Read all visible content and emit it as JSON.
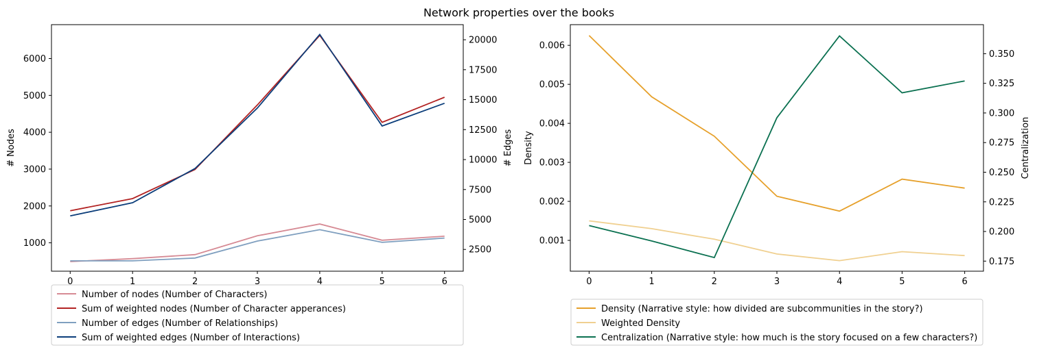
{
  "suptitle": "Network properties over the books",
  "chart_data": [
    {
      "type": "line",
      "x": [
        0,
        1,
        2,
        3,
        4,
        5,
        6
      ],
      "xlim": [
        -0.3,
        6.3
      ],
      "left_axis": {
        "label": "# Nodes",
        "ylim": [
          230,
          6920
        ],
        "ticks": [
          1000,
          2000,
          3000,
          4000,
          5000,
          6000
        ]
      },
      "right_axis": {
        "label": "# Edges",
        "ylim": [
          685,
          21260
        ],
        "ticks": [
          2500,
          5000,
          7500,
          10000,
          12500,
          15000,
          17500,
          20000
        ]
      },
      "series": [
        {
          "name": "Number of nodes (Number of Characters)",
          "axis": "left",
          "color": "#d68a94",
          "values": [
            490,
            570,
            680,
            1190,
            1510,
            1070,
            1180
          ]
        },
        {
          "name": "Sum of weighted nodes (Number of Character apperances)",
          "axis": "left",
          "color": "#b22222",
          "values": [
            1870,
            2200,
            2990,
            4740,
            6630,
            4270,
            4950
          ]
        },
        {
          "name": "Number of edges (Number of Relationships)",
          "axis": "right",
          "color": "#7f9fbf",
          "values": [
            1550,
            1550,
            1780,
            3200,
            4150,
            3090,
            3450
          ]
        },
        {
          "name": "Sum of weighted edges (Number of Interactions)",
          "axis": "right",
          "color": "#0b3d7a",
          "values": [
            5300,
            6400,
            9250,
            14300,
            20440,
            12800,
            14700
          ]
        }
      ],
      "legend": "below"
    },
    {
      "type": "line",
      "x": [
        0,
        1,
        2,
        3,
        4,
        5,
        6
      ],
      "xlim": [
        -0.3,
        6.3
      ],
      "left_axis": {
        "label": "Density",
        "ylim": [
          0.00021,
          0.00653
        ],
        "ticks": [
          0.001,
          0.002,
          0.003,
          0.004,
          0.005,
          0.006
        ],
        "tick_labels": [
          "0.001",
          "0.002",
          "0.003",
          "0.004",
          "0.005",
          "0.006"
        ]
      },
      "right_axis": {
        "label": "Centralization",
        "ylim": [
          0.1665,
          0.3745
        ],
        "ticks": [
          0.175,
          0.2,
          0.225,
          0.25,
          0.275,
          0.3,
          0.325,
          0.35
        ],
        "tick_labels": [
          "0.175",
          "0.200",
          "0.225",
          "0.250",
          "0.275",
          "0.300",
          "0.325",
          "0.350"
        ]
      },
      "series": [
        {
          "name": "Density (Narrative style: how divided are subcommunities in the story?)",
          "axis": "left",
          "color": "#e6a02a",
          "values": [
            0.00625,
            0.00468,
            0.00367,
            0.00213,
            0.00175,
            0.00257,
            0.00234
          ]
        },
        {
          "name": "Weighted Density",
          "axis": "left",
          "color": "#f0d090",
          "values": [
            0.0015,
            0.0013,
            0.00103,
            0.00065,
            0.00048,
            0.00071,
            0.00061
          ]
        },
        {
          "name": "Centralization (Narrative style: how much is the story focused on a few characters?)",
          "axis": "right",
          "color": "#0a7050",
          "values": [
            0.205,
            0.192,
            0.178,
            0.296,
            0.365,
            0.317,
            0.327
          ]
        }
      ],
      "legend": "below"
    }
  ]
}
